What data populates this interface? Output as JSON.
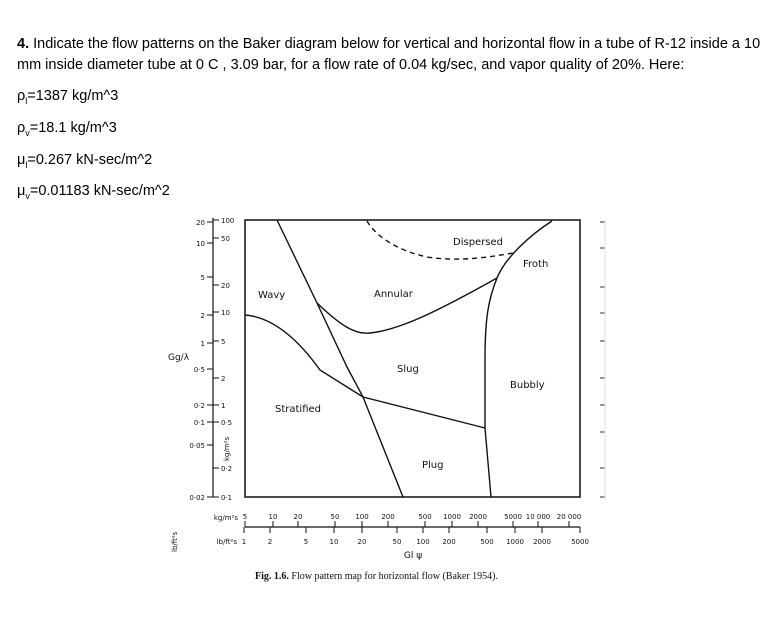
{
  "question": {
    "number": "4.",
    "text_line1": " Indicate the flow patterns on the Baker diagram below for vertical and horizontal flow in a tube of R-12 inside a 10",
    "text_line2": "mm inside diameter tube at 0 C , 3.09 bar, for a flow rate of 0.04 kg/sec, and vapor quality of 20%. Here:"
  },
  "properties": [
    {
      "sym": "ρ",
      "sub": "l",
      "value": "=1387 kg/m^3"
    },
    {
      "sym": "ρ",
      "sub": "v",
      "value": "=18.1 kg/m^3"
    },
    {
      "sym": "μ",
      "sub": "l",
      "value": "=0.267 kN-sec/m^2"
    },
    {
      "sym": "μ",
      "sub": "v",
      "value": "=0.01183 kN-sec/m^2"
    }
  ],
  "figure": {
    "regions": [
      "Dispersed",
      "Froth",
      "Wavy",
      "Annular",
      "Slug",
      "Bubbly",
      "Stratified",
      "Plug"
    ],
    "y_label": "Gg/λ",
    "y_unit_left": "lb/ft²s",
    "y_unit_right": "kg/m²s",
    "y_ticks_left": [
      "20",
      "10",
      "5",
      "2",
      "1",
      "0·5",
      "0·2",
      "0·1",
      "0·05",
      "0·02"
    ],
    "y_ticks_right": [
      "100",
      "50",
      "20",
      "10",
      "5",
      "2",
      "1",
      "0·5",
      "0·2",
      "0·1"
    ],
    "x_unit_top": "kg/m²s",
    "x_unit_bottom": "lb/ft²s",
    "x_ticks_top": [
      "5",
      "10",
      "20",
      "50",
      "100",
      "200",
      "500",
      "1000",
      "2000",
      "5000",
      "10 000",
      "20 000"
    ],
    "x_ticks_bottom": [
      "1",
      "2",
      "5",
      "10",
      "20",
      "50",
      "100",
      "200",
      "500",
      "1000",
      "2000",
      "5000"
    ],
    "x_label": "Gl ψ",
    "caption_bold": "Fig. 1.6.",
    "caption": " Flow pattern map for horizontal flow (Baker 1954)."
  }
}
